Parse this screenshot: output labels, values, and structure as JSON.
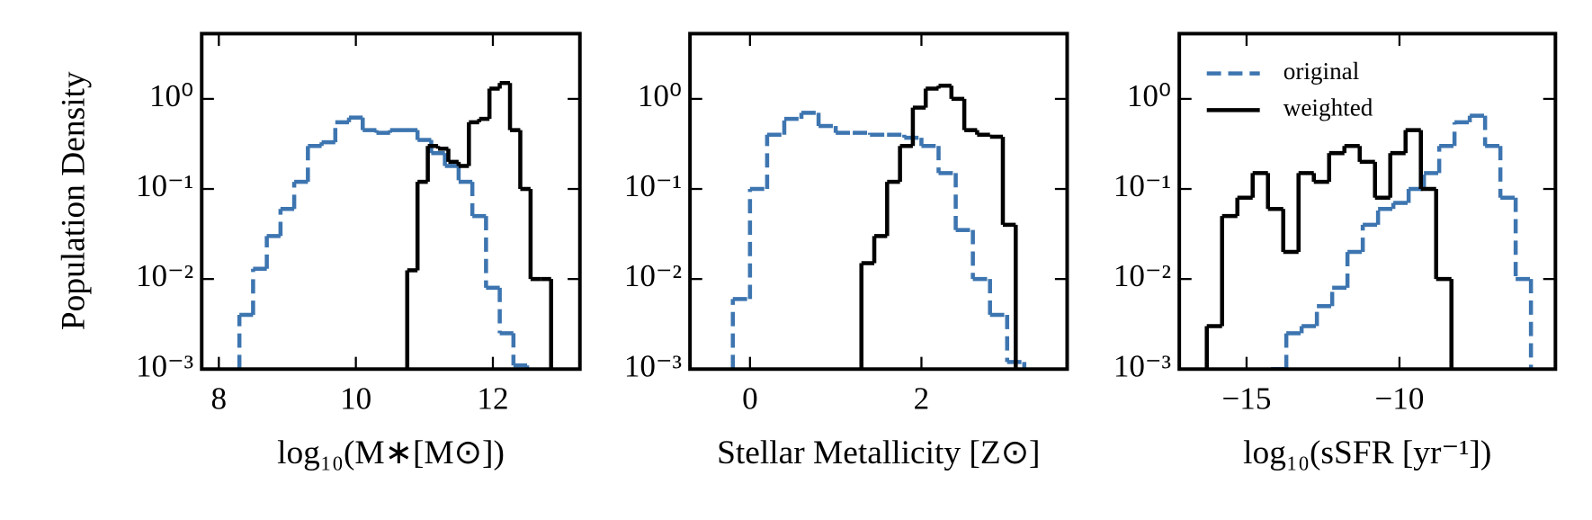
{
  "chart_data": [
    {
      "type": "histogram",
      "xlabel": "log₁₀(M∗[M⊙])",
      "ylabel": "Population Density",
      "log_y": true,
      "xlim": [
        7.75,
        13.27
      ],
      "ylim": [
        0.001,
        5.3
      ],
      "xticks": [
        8,
        10,
        12
      ],
      "yticks": [
        {
          "value": 0.001,
          "label": "10⁻³"
        },
        {
          "value": 0.01,
          "label": "10⁻²"
        },
        {
          "value": 0.1,
          "label": "10⁻¹"
        },
        {
          "value": 1,
          "label": "10⁰"
        }
      ],
      "series": [
        {
          "color": "#3d75b0",
          "dashed": true,
          "bins": [
            8.3,
            8.5,
            8.7,
            8.9,
            9.1,
            9.3,
            9.5,
            9.7,
            9.9,
            10.1,
            10.3,
            10.5,
            10.7,
            10.9,
            11.1,
            11.3,
            11.5,
            11.7,
            11.9,
            12.1,
            12.3,
            12.5
          ],
          "values": [
            0.004,
            0.013,
            0.03,
            0.06,
            0.12,
            0.3,
            0.33,
            0.55,
            0.62,
            0.45,
            0.42,
            0.45,
            0.45,
            0.35,
            0.25,
            0.18,
            0.12,
            0.05,
            0.008,
            0.0025,
            0.0011
          ]
        },
        {
          "color": "#000000",
          "dashed": false,
          "bins": [
            10.75,
            10.9,
            11.05,
            11.2,
            11.35,
            11.5,
            11.65,
            11.8,
            11.95,
            12.1,
            12.25,
            12.4,
            12.55,
            12.7,
            12.85
          ],
          "values": [
            0.0125,
            0.12,
            0.3,
            0.28,
            0.2,
            0.18,
            0.55,
            0.6,
            1.3,
            1.5,
            0.45,
            0.1,
            0.01,
            0.01
          ]
        }
      ]
    },
    {
      "type": "histogram",
      "xlabel": "Stellar Metallicity [Z⊙]",
      "log_y": true,
      "xlim": [
        -0.7,
        3.7
      ],
      "ylim": [
        0.001,
        5.3
      ],
      "xticks": [
        0,
        2
      ],
      "yticks": [
        {
          "value": 0.001,
          "label": "10⁻³"
        },
        {
          "value": 0.01,
          "label": "10⁻²"
        },
        {
          "value": 0.1,
          "label": "10⁻¹"
        },
        {
          "value": 1,
          "label": "10⁰"
        }
      ],
      "series": [
        {
          "color": "#3d75b0",
          "dashed": true,
          "bins": [
            -0.2,
            0,
            0.2,
            0.4,
            0.6,
            0.8,
            1.0,
            1.2,
            1.4,
            1.6,
            1.8,
            2.0,
            2.2,
            2.4,
            2.6,
            2.8,
            3.0,
            3.2
          ],
          "values": [
            0.006,
            0.1,
            0.4,
            0.6,
            0.7,
            0.5,
            0.42,
            0.42,
            0.4,
            0.4,
            0.37,
            0.3,
            0.15,
            0.035,
            0.01,
            0.004,
            0.0012
          ]
        },
        {
          "color": "#000000",
          "dashed": false,
          "bins": [
            1.3,
            1.45,
            1.6,
            1.75,
            1.9,
            2.05,
            2.2,
            2.35,
            2.5,
            2.65,
            2.8,
            2.95,
            3.1
          ],
          "values": [
            0.015,
            0.03,
            0.12,
            0.3,
            0.8,
            1.3,
            1.4,
            1.0,
            0.45,
            0.4,
            0.38,
            0.04
          ]
        }
      ]
    },
    {
      "type": "histogram",
      "xlabel": "log₁₀(sSFR [yr⁻¹])",
      "log_y": true,
      "xlim": [
        -17.2,
        -4.9
      ],
      "ylim": [
        0.001,
        5.3
      ],
      "xticks": [
        {
          "value": -15,
          "label": "−15"
        },
        {
          "value": -10,
          "label": "−10"
        }
      ],
      "yticks": [
        {
          "value": 0.001,
          "label": "10⁻³"
        },
        {
          "value": 0.01,
          "label": "10⁻²"
        },
        {
          "value": 0.1,
          "label": "10⁻¹"
        },
        {
          "value": 1,
          "label": "10⁰"
        }
      ],
      "legend": "upper left",
      "series": [
        {
          "name": "original",
          "color": "#3d75b0",
          "dashed": true,
          "bins": [
            -14.2,
            -13.7,
            -13.2,
            -12.7,
            -12.2,
            -11.7,
            -11.2,
            -10.7,
            -10.2,
            -9.7,
            -9.2,
            -8.7,
            -8.2,
            -7.7,
            -7.2,
            -6.7,
            -6.2,
            -5.7
          ],
          "values": [
            0.001,
            0.0025,
            0.003,
            0.005,
            0.008,
            0.02,
            0.04,
            0.06,
            0.07,
            0.1,
            0.15,
            0.3,
            0.55,
            0.65,
            0.3,
            0.08,
            0.01
          ]
        },
        {
          "name": "weighted",
          "color": "#000000",
          "dashed": false,
          "bins": [
            -16.3,
            -15.8,
            -15.3,
            -14.8,
            -14.3,
            -13.8,
            -13.3,
            -12.8,
            -12.3,
            -11.8,
            -11.3,
            -10.8,
            -10.3,
            -9.8,
            -9.3,
            -8.8,
            -8.3
          ],
          "values": [
            0.003,
            0.05,
            0.08,
            0.15,
            0.06,
            0.02,
            0.15,
            0.12,
            0.25,
            0.3,
            0.2,
            0.08,
            0.25,
            0.45,
            0.1,
            0.01
          ]
        }
      ]
    }
  ]
}
